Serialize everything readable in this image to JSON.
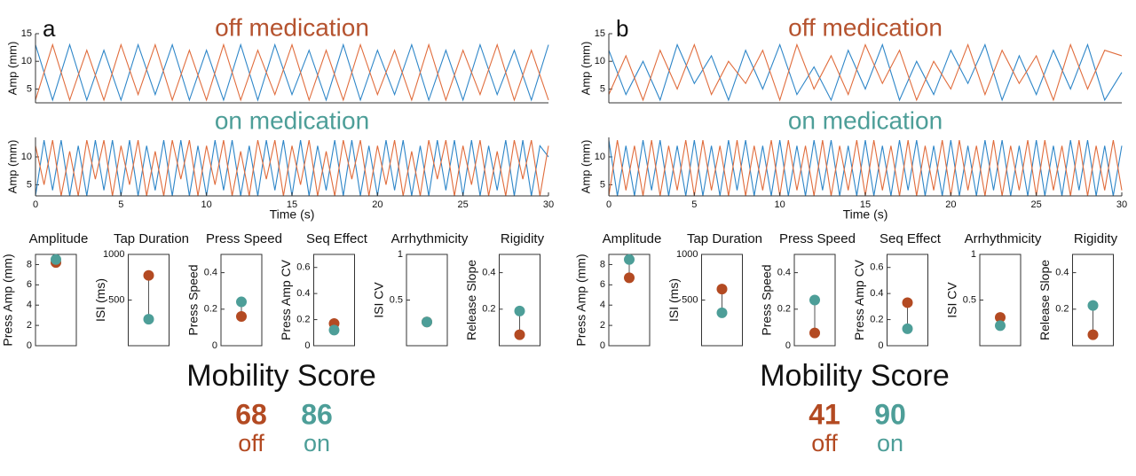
{
  "panels": [
    {
      "label": "a",
      "score_title": "Mobility Score",
      "scores": [
        {
          "value": 68,
          "label": "off",
          "color": "#b34a22"
        },
        {
          "value": 86,
          "label": "on",
          "color": "#4d9e98"
        }
      ]
    },
    {
      "label": "b",
      "score_title": "Mobility Score",
      "scores": [
        {
          "value": 41,
          "label": "off",
          "color": "#b34a22"
        },
        {
          "value": 90,
          "label": "on",
          "color": "#4d9e98"
        }
      ]
    }
  ],
  "chart_data": [
    {
      "type": "line",
      "title": "off medication",
      "title_color": "#b5532f",
      "ylabel": "Amp (mm)",
      "x": [
        0,
        1,
        2,
        3,
        4,
        5,
        6,
        7,
        8,
        9,
        10,
        11,
        12,
        13,
        14,
        15,
        16,
        17,
        18,
        19,
        20,
        21,
        22,
        23,
        24,
        25,
        26,
        27,
        28,
        29,
        30
      ],
      "xlim": [
        0,
        30
      ],
      "ylim": [
        2.5,
        15
      ],
      "yticks": [
        5,
        10,
        15
      ],
      "series": [
        {
          "color": "#2e86c8",
          "values": [
            13,
            3,
            13,
            3,
            12,
            3,
            13,
            4,
            13,
            3,
            12,
            3,
            13,
            3,
            13,
            4,
            12,
            3,
            13,
            3,
            12,
            4,
            13,
            3,
            12,
            3,
            13,
            4,
            12,
            3,
            13
          ]
        },
        {
          "color": "#e06c3c",
          "values": [
            3,
            13,
            3,
            12,
            3,
            13,
            4,
            13,
            3,
            12,
            3,
            13,
            3,
            12,
            4,
            13,
            3,
            12,
            3,
            13,
            4,
            12,
            3,
            13,
            3,
            12,
            4,
            13,
            3,
            12,
            3
          ]
        }
      ]
    },
    {
      "type": "line",
      "title": "on medication",
      "title_color": "#4d9e98",
      "ylabel": "Amp (mm)",
      "xlabel": "Time (s)",
      "x": [
        0,
        0.5,
        1,
        1.5,
        2,
        2.5,
        3,
        3.5,
        4,
        4.5,
        5,
        5.5,
        6,
        6.5,
        7,
        7.5,
        8,
        8.5,
        9,
        9.5,
        10,
        10.5,
        11,
        11.5,
        12,
        12.5,
        13,
        13.5,
        14,
        14.5,
        15,
        15.5,
        16,
        16.5,
        17,
        17.5,
        18,
        18.5,
        19,
        19.5,
        20,
        20.5,
        21,
        21.5,
        22,
        22.5,
        23,
        23.5,
        24,
        24.5,
        25,
        25.5,
        26,
        26.5,
        27,
        27.5,
        28,
        28.5,
        29,
        29.5,
        30
      ],
      "xlim": [
        0,
        30
      ],
      "ylim": [
        3,
        13.5
      ],
      "yticks": [
        5,
        10
      ],
      "xticks": [
        0,
        5,
        10,
        15,
        20,
        25,
        30
      ],
      "series": [
        {
          "color": "#2e86c8",
          "values": [
            3,
            13,
            4,
            13,
            3,
            12,
            3,
            13,
            4,
            13,
            3,
            13,
            3,
            12,
            4,
            13,
            3,
            13,
            3,
            12,
            3,
            13,
            4,
            13,
            3,
            12,
            3,
            13,
            4,
            13,
            3,
            13,
            3,
            12,
            4,
            13,
            3,
            13,
            3,
            12,
            3,
            13,
            4,
            13,
            3,
            12,
            3,
            13,
            4,
            13,
            3,
            13,
            3,
            12,
            4,
            13,
            3,
            13,
            3,
            12,
            10
          ]
        },
        {
          "color": "#e06c3c",
          "values": [
            12,
            5,
            13,
            3,
            11,
            3,
            13,
            6,
            13,
            3,
            12,
            5,
            13,
            3,
            11,
            3,
            13,
            6,
            13,
            3,
            12,
            5,
            13,
            3,
            11,
            3,
            13,
            6,
            13,
            3,
            12,
            5,
            13,
            3,
            11,
            3,
            13,
            6,
            13,
            3,
            12,
            5,
            13,
            3,
            11,
            3,
            13,
            6,
            13,
            3,
            12,
            5,
            13,
            3,
            11,
            3,
            13,
            6,
            13,
            3,
            12
          ]
        }
      ]
    },
    {
      "type": "dot",
      "title": "Amplitude",
      "ylabel": "Press Amp (mm)",
      "ylim": [
        0,
        9
      ],
      "yticks": [
        0,
        2,
        4,
        6,
        8
      ],
      "values": [
        8.2,
        8.5
      ],
      "colors": [
        "#b34a22",
        "#4d9e98"
      ]
    },
    {
      "type": "dot",
      "title": "Tap Duration",
      "ylabel": "ISI (ms)",
      "ylim": [
        0,
        1000
      ],
      "yticks": [
        500,
        1000
      ],
      "values": [
        770,
        290
      ],
      "colors": [
        "#b34a22",
        "#4d9e98"
      ]
    },
    {
      "type": "dot",
      "title": "Press Speed",
      "ylabel": "Press Speed",
      "ylim": [
        0,
        0.5
      ],
      "yticks": [
        0,
        0.2,
        0.4
      ],
      "values": [
        0.16,
        0.24
      ],
      "colors": [
        "#b34a22",
        "#4d9e98"
      ]
    },
    {
      "type": "dot",
      "title": "Seq Effect",
      "ylabel": "Press Amp CV",
      "ylim": [
        0,
        0.7
      ],
      "yticks": [
        0,
        0.2,
        0.4,
        0.6
      ],
      "values": [
        0.17,
        0.12
      ],
      "colors": [
        "#b34a22",
        "#4d9e98"
      ]
    },
    {
      "type": "dot",
      "title": "Arrhythmicity",
      "ylabel": "ISI CV",
      "ylim": [
        0,
        1
      ],
      "yticks": [
        0.5,
        1
      ],
      "values": [
        0.26,
        0.26
      ],
      "colors": [
        "#b34a22",
        "#4d9e98"
      ]
    },
    {
      "type": "dot",
      "title": "Rigidity",
      "ylabel": "Release Slope",
      "ylim": [
        0,
        0.5
      ],
      "yticks": [
        0.2,
        0.4
      ],
      "values": [
        0.06,
        0.19
      ],
      "colors": [
        "#b34a22",
        "#4d9e98"
      ]
    },
    {
      "type": "line",
      "title": "off medication",
      "title_color": "#b5532f",
      "ylabel": "Amp (mm)",
      "x": [
        0,
        1,
        2,
        3,
        4,
        5,
        6,
        7,
        8,
        9,
        10,
        11,
        12,
        13,
        14,
        15,
        16,
        17,
        18,
        19,
        20,
        21,
        22,
        23,
        24,
        25,
        26,
        27,
        28,
        29,
        30
      ],
      "xlim": [
        0,
        30
      ],
      "ylim": [
        2.5,
        15
      ],
      "yticks": [
        5,
        10,
        15
      ],
      "series": [
        {
          "color": "#2e86c8",
          "values": [
            12,
            4,
            10,
            3,
            13,
            6,
            11,
            3,
            12,
            5,
            13,
            4,
            9,
            3,
            12,
            5,
            13,
            3,
            10,
            4,
            12,
            6,
            13,
            3,
            11,
            4,
            12,
            5,
            13,
            3,
            8
          ]
        },
        {
          "color": "#e06c3c",
          "values": [
            4,
            11,
            3,
            12,
            5,
            13,
            4,
            10,
            6,
            12,
            3,
            13,
            5,
            11,
            4,
            13,
            6,
            12,
            3,
            10,
            5,
            13,
            4,
            12,
            6,
            11,
            3,
            13,
            5,
            12,
            11
          ]
        }
      ]
    },
    {
      "type": "line",
      "title": "on medication",
      "title_color": "#4d9e98",
      "ylabel": "Amp (mm)",
      "xlabel": "Time (s)",
      "x": [
        0,
        0.5,
        1,
        1.5,
        2,
        2.5,
        3,
        3.5,
        4,
        4.5,
        5,
        5.5,
        6,
        6.5,
        7,
        7.5,
        8,
        8.5,
        9,
        9.5,
        10,
        10.5,
        11,
        11.5,
        12,
        12.5,
        13,
        13.5,
        14,
        14.5,
        15,
        15.5,
        16,
        16.5,
        17,
        17.5,
        18,
        18.5,
        19,
        19.5,
        20,
        20.5,
        21,
        21.5,
        22,
        22.5,
        23,
        23.5,
        24,
        24.5,
        25,
        25.5,
        26,
        26.5,
        27,
        27.5,
        28,
        28.5,
        29,
        29.5,
        30
      ],
      "xlim": [
        0,
        30
      ],
      "ylim": [
        3,
        13.5
      ],
      "yticks": [
        5,
        10
      ],
      "xticks": [
        0,
        5,
        10,
        15,
        20,
        25,
        30
      ],
      "series": [
        {
          "color": "#2e86c8",
          "values": [
            13,
            3,
            12,
            3,
            13,
            4,
            13,
            3,
            12,
            3,
            13,
            3,
            12,
            3,
            13,
            4,
            13,
            3,
            12,
            3,
            13,
            3,
            12,
            3,
            13,
            4,
            13,
            3,
            12,
            3,
            13,
            3,
            12,
            3,
            13,
            4,
            13,
            3,
            12,
            3,
            13,
            3,
            12,
            3,
            13,
            4,
            13,
            3,
            12,
            3,
            13,
            3,
            12,
            3,
            13,
            4,
            13,
            3,
            12,
            3,
            12
          ]
        },
        {
          "color": "#e06c3c",
          "values": [
            3,
            13,
            4,
            12,
            3,
            13,
            3,
            12,
            4,
            13,
            3,
            13,
            4,
            12,
            3,
            13,
            3,
            12,
            4,
            13,
            3,
            13,
            4,
            12,
            3,
            13,
            3,
            12,
            4,
            13,
            3,
            13,
            4,
            12,
            3,
            13,
            3,
            12,
            4,
            13,
            3,
            13,
            4,
            12,
            3,
            13,
            3,
            12,
            4,
            13,
            3,
            13,
            4,
            12,
            3,
            13,
            3,
            12,
            4,
            13,
            4
          ]
        }
      ]
    },
    {
      "type": "dot",
      "title": "Amplitude",
      "ylabel": "Press Amp (mm)",
      "ylim": [
        0,
        9
      ],
      "yticks": [
        0,
        2,
        4,
        6,
        8
      ],
      "values": [
        6.7,
        8.5
      ],
      "colors": [
        "#b34a22",
        "#4d9e98"
      ]
    },
    {
      "type": "dot",
      "title": "Tap Duration",
      "ylabel": "ISI (ms)",
      "ylim": [
        0,
        1000
      ],
      "yticks": [
        500,
        1000
      ],
      "values": [
        620,
        360
      ],
      "colors": [
        "#b34a22",
        "#4d9e98"
      ]
    },
    {
      "type": "dot",
      "title": "Press Speed",
      "ylabel": "Press Speed",
      "ylim": [
        0,
        0.5
      ],
      "yticks": [
        0,
        0.2,
        0.4
      ],
      "values": [
        0.07,
        0.25
      ],
      "colors": [
        "#b34a22",
        "#4d9e98"
      ]
    },
    {
      "type": "dot",
      "title": "Seq Effect",
      "ylabel": "Press Amp CV",
      "ylim": [
        0,
        0.7
      ],
      "yticks": [
        0,
        0.2,
        0.4,
        0.6
      ],
      "values": [
        0.33,
        0.13
      ],
      "colors": [
        "#b34a22",
        "#4d9e98"
      ]
    },
    {
      "type": "dot",
      "title": "Arrhythmicity",
      "ylabel": "ISI CV",
      "ylim": [
        0,
        1
      ],
      "yticks": [
        0.5,
        1
      ],
      "values": [
        0.31,
        0.22
      ],
      "colors": [
        "#b34a22",
        "#4d9e98"
      ]
    },
    {
      "type": "dot",
      "title": "Rigidity",
      "ylabel": "Release Slope",
      "ylim": [
        0,
        0.5
      ],
      "yticks": [
        0.2,
        0.4
      ],
      "values": [
        0.06,
        0.22
      ],
      "colors": [
        "#b34a22",
        "#4d9e98"
      ]
    }
  ]
}
